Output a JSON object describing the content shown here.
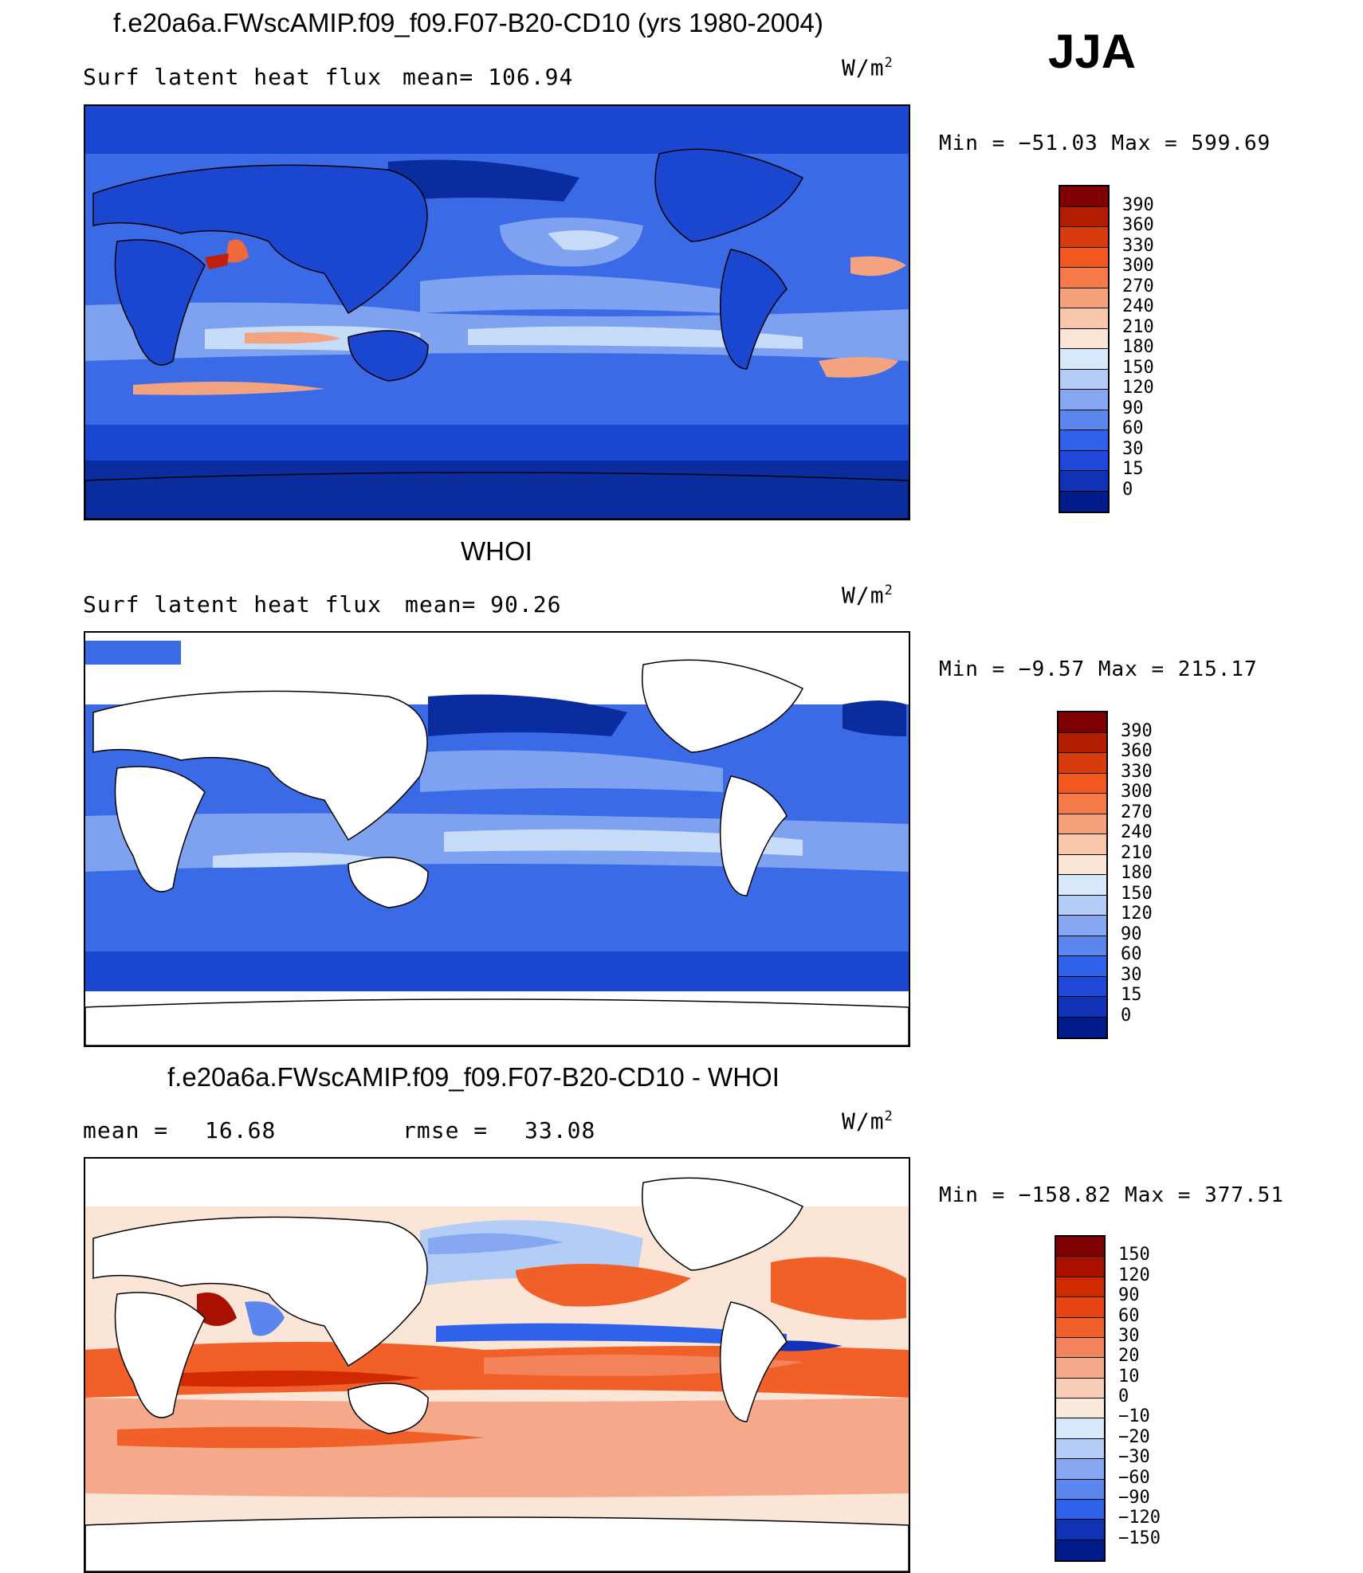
{
  "season": "JJA",
  "panels": [
    {
      "title": "f.e20a6a.FWscAMIP.f09_f09.F07-B20-CD10 (yrs 1980-2004)",
      "left_label": "Surf latent heat flux",
      "mid_label": "mean=",
      "mid_value": "106.94",
      "units_base": "W/m",
      "units_exp": "2",
      "minmax": "Min = −51.03 Max = 599.69"
    },
    {
      "title": "WHOI",
      "left_label": "Surf latent heat flux",
      "mid_label": "mean=",
      "mid_value": "90.26",
      "units_base": "W/m",
      "units_exp": "2",
      "minmax": "Min =  −9.57 Max = 215.17"
    },
    {
      "title": "f.e20a6a.FWscAMIP.f09_f09.F07-B20-CD10 - WHOI",
      "left_label": "mean =",
      "left_value": "16.68",
      "mid_label": "rmse =",
      "mid_value": "33.08",
      "units_base": "W/m",
      "units_exp": "2",
      "minmax": "Min = −158.82 Max = 377.51"
    }
  ],
  "colorbars": {
    "flux": {
      "labels": [
        "390",
        "360",
        "330",
        "300",
        "270",
        "240",
        "210",
        "180",
        "150",
        "120",
        "90",
        "60",
        "30",
        "15",
        "0"
      ],
      "colors": [
        "#7f0000",
        "#b21d00",
        "#d83b0c",
        "#f2571f",
        "#f57a47",
        "#f6a07c",
        "#f8c6ab",
        "#fbe5d6",
        "#d8e8fb",
        "#b4cdf7",
        "#86a8f2",
        "#5b86ee",
        "#2f62eb",
        "#1f47d8",
        "#1232b6",
        "#001b8a"
      ]
    },
    "diff": {
      "labels": [
        "150",
        "120",
        "90",
        "60",
        "30",
        "20",
        "10",
        "0",
        "−10",
        "−20",
        "−30",
        "−60",
        "−90",
        "−120",
        "−150"
      ],
      "colors": [
        "#7f0000",
        "#a91000",
        "#d12a00",
        "#e94413",
        "#f2602a",
        "#f3835a",
        "#f5a98b",
        "#f8cdb6",
        "#fbeadb",
        "#d8e8fb",
        "#b4cdf7",
        "#86a8f2",
        "#5b86ee",
        "#2f62eb",
        "#1232b6",
        "#001b8a"
      ]
    }
  },
  "map_colors": {
    "deep": "#0a2c9e",
    "dark": "#1a46d0",
    "mid": "#3b6ae6",
    "light": "#7ea2ef",
    "pale": "#c7dcf8",
    "cream": "#fbe5d6",
    "salmon": "#f4a381",
    "orange": "#ee6a3c",
    "red": "#c21f05",
    "land": "#ffffff",
    "coast": "#000000"
  }
}
